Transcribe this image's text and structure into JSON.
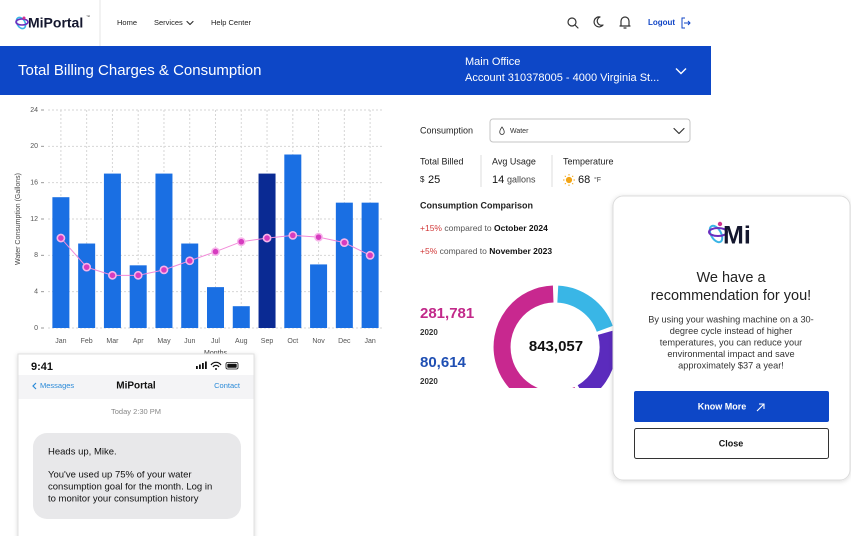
{
  "nav": {
    "logo": "MiPortal",
    "logo_badge": "™",
    "items": [
      "Home",
      "Services",
      "Help Center"
    ],
    "logout": "Logout"
  },
  "banner": {
    "title": "Total Billing Charges & Consumption",
    "location": "Main Office",
    "account": "Account 310378005 - 4000 Virginia St..."
  },
  "chart_data": {
    "type": "bar",
    "y_label": "Water Consumption (Gallons)",
    "x_label": "Months",
    "categories": [
      "Jan",
      "Feb",
      "Mar",
      "Apr",
      "May",
      "Jun",
      "Jul",
      "Aug",
      "Sep",
      "Oct",
      "Nov",
      "Dec",
      "Jan"
    ],
    "ylim": [
      0,
      24
    ],
    "yticks": [
      0,
      4,
      8,
      12,
      16,
      20,
      24
    ],
    "grid": true,
    "series": [
      {
        "type": "bar",
        "color": "#1a6fe3",
        "colors": [
          "#1a6fe3",
          "#1a6fe3",
          "#1a6fe3",
          "#1a6fe3",
          "#1a6fe3",
          "#1a6fe3",
          "#1a6fe3",
          "#1a6fe3",
          "#0a2a93",
          "#1a6fe3",
          "#1a6fe3",
          "#1a6fe3",
          "#1a6fe3"
        ],
        "values": [
          14.4,
          9.3,
          17,
          6.9,
          17,
          9.3,
          4.5,
          2.4,
          17,
          19.1,
          7,
          13.8,
          13.8
        ]
      },
      {
        "type": "line",
        "color": "#f28ad9",
        "marker_color": "#d63cbf",
        "values": [
          9.9,
          6.7,
          5.8,
          5.8,
          6.4,
          7.4,
          8.4,
          9.5,
          9.9,
          10.2,
          10,
          9.4,
          8
        ]
      }
    ]
  },
  "panel": {
    "consumption_label": "Consumption",
    "selected": "Water",
    "stats": [
      {
        "label": "Total Billed",
        "prefix": "$",
        "value": "25"
      },
      {
        "label": "Avg Usage",
        "value": "14",
        "unit": "gallons"
      },
      {
        "label": "Temperature",
        "value": "68",
        "unit": "°F"
      }
    ],
    "comparison_title": "Consumption Comparison",
    "comparisons": [
      {
        "change": "+15%",
        "text": "compared to",
        "period": "October 2024"
      },
      {
        "change": "+5%",
        "text": "compared to",
        "period": "November 2023"
      }
    ],
    "totals": [
      {
        "value": "281,781",
        "year": "2020"
      },
      {
        "value": "80,614",
        "year": "2020"
      }
    ],
    "donut_total": "843,057"
  },
  "phone": {
    "time": "9:41",
    "back": "Messages",
    "title": "MiPortal",
    "action": "Contact",
    "timestamp": "Today 2:30 PM",
    "greeting": "Heads up, Mike.",
    "body_lines": [
      "You've used up 75% of your water",
      "consumption goal for the month. Log in",
      "to monitor your consumption history"
    ]
  },
  "popup": {
    "logo": "Mi",
    "heading_lines": [
      "We have a",
      "recommendation for you!"
    ],
    "body_lines": [
      "By using your washing machine on a 30-",
      "degree cycle instead of higher",
      "temperatures, you can reduce your",
      "environmental impact and save",
      "approximately $37 a year!"
    ],
    "primary": "Know More",
    "secondary": "Close"
  }
}
